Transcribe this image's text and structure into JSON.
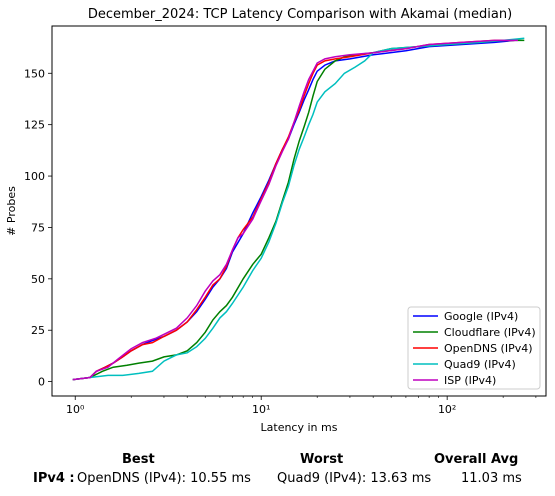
{
  "chart_data": {
    "type": "line",
    "title": "December_2024: TCP Latency Comparison with Akamai (median)",
    "xlabel": "Latency in ms",
    "ylabel": "# Probes",
    "xscale": "log",
    "xlim": [
      0.75,
      340
    ],
    "ylim": [
      -7,
      173
    ],
    "x_ticks": [
      1,
      10,
      100
    ],
    "x_tick_labels": [
      "10⁰",
      "10¹",
      "10²"
    ],
    "y_ticks": [
      0,
      25,
      50,
      75,
      100,
      125,
      150
    ],
    "grid": false,
    "legend_position": "lower-right",
    "series": [
      {
        "name": "Google (IPv4)",
        "color": "#0000ff",
        "x": [
          0.97,
          1.2,
          1.3,
          1.45,
          1.6,
          1.8,
          2.0,
          2.3,
          2.6,
          3.0,
          3.5,
          4.0,
          4.5,
          5.0,
          5.5,
          6.0,
          6.5,
          7.0,
          8.0,
          9.0,
          10.0,
          11.0,
          12.0,
          13.0,
          14.0,
          15.0,
          16.0,
          17.0,
          18.0,
          19.0,
          20.0,
          22.0,
          25.0,
          30.0,
          40.0,
          60.0,
          80.0,
          120.0,
          180.0,
          230.0
        ],
        "y": [
          1,
          2,
          5,
          7,
          9,
          12,
          15,
          18,
          20,
          22,
          25,
          29,
          34,
          40,
          46,
          50,
          55,
          63,
          72,
          82,
          90,
          98,
          106,
          113,
          118,
          125,
          131,
          137,
          142,
          147,
          151,
          154,
          156,
          157,
          159,
          161,
          163,
          164,
          165,
          166
        ]
      },
      {
        "name": "Cloudflare (IPv4)",
        "color": "#008000",
        "x": [
          0.97,
          1.2,
          1.4,
          1.6,
          1.9,
          2.2,
          2.6,
          3.0,
          3.5,
          4.0,
          4.5,
          5.0,
          5.5,
          6.0,
          6.5,
          7.0,
          8.0,
          9.0,
          10.0,
          11.0,
          12.0,
          13.0,
          14.0,
          15.0,
          16.0,
          17.0,
          18.0,
          19.0,
          20.0,
          22.0,
          25.0,
          28.0,
          32.0,
          40.0,
          50.0,
          70.0,
          100.0,
          150.0,
          200.0,
          260.0
        ],
        "y": [
          1,
          2,
          5,
          7,
          8,
          9,
          10,
          12,
          13,
          15,
          19,
          24,
          30,
          34,
          37,
          41,
          50,
          57,
          62,
          70,
          78,
          88,
          97,
          108,
          117,
          124,
          131,
          139,
          146,
          152,
          156,
          158,
          159,
          160,
          162,
          163,
          164,
          165,
          166,
          166
        ]
      },
      {
        "name": "OpenDNS (IPv4)",
        "color": "#ff0000",
        "x": [
          0.97,
          1.2,
          1.3,
          1.45,
          1.6,
          1.8,
          2.0,
          2.3,
          2.6,
          3.0,
          3.5,
          4.0,
          4.5,
          5.0,
          5.5,
          6.0,
          6.5,
          7.0,
          7.5,
          8.0,
          9.0,
          10.0,
          11.0,
          12.0,
          13.0,
          14.0,
          15.0,
          16.0,
          17.0,
          18.0,
          19.0,
          20.0,
          22.0,
          25.0,
          30.0,
          40.0,
          60.0,
          80.0,
          120.0,
          180.0,
          230.0
        ],
        "y": [
          1,
          2,
          5,
          7,
          9,
          12,
          15,
          18,
          19,
          22,
          25,
          29,
          35,
          41,
          47,
          50,
          56,
          64,
          70,
          74,
          80,
          89,
          97,
          106,
          113,
          119,
          126,
          132,
          139,
          145,
          150,
          154,
          156,
          157,
          158,
          160,
          162,
          164,
          165,
          166,
          166
        ]
      },
      {
        "name": "Quad9 (IPv4)",
        "color": "#00bfbf",
        "x": [
          0.97,
          1.2,
          1.5,
          1.8,
          2.2,
          2.6,
          3.0,
          3.5,
          4.0,
          4.5,
          5.0,
          5.5,
          6.0,
          6.5,
          7.0,
          8.0,
          9.0,
          10.0,
          11.0,
          12.0,
          13.0,
          14.0,
          15.0,
          16.0,
          17.0,
          18.0,
          19.0,
          20.0,
          22.0,
          25.0,
          28.0,
          32.0,
          36.0,
          40.0,
          50.0,
          70.0,
          100.0,
          150.0,
          200.0,
          260.0
        ],
        "y": [
          1,
          2,
          3,
          3,
          4,
          5,
          10,
          13,
          14,
          17,
          21,
          26,
          31,
          34,
          38,
          46,
          54,
          60,
          68,
          77,
          87,
          95,
          105,
          113,
          119,
          125,
          130,
          136,
          141,
          145,
          150,
          153,
          156,
          160,
          162,
          163,
          164,
          165,
          166,
          167
        ]
      },
      {
        "name": "ISP (IPv4)",
        "color": "#bf00bf",
        "x": [
          0.97,
          1.2,
          1.3,
          1.5,
          1.7,
          2.0,
          2.3,
          2.7,
          3.0,
          3.5,
          4.0,
          4.5,
          5.0,
          5.5,
          6.0,
          6.5,
          7.0,
          7.5,
          8.0,
          9.0,
          10.0,
          11.0,
          12.0,
          13.0,
          14.0,
          15.0,
          16.0,
          17.0,
          18.0,
          19.0,
          20.0,
          22.0,
          25.0,
          30.0,
          40.0,
          60.0,
          80.0,
          120.0,
          180.0,
          240.0
        ],
        "y": [
          1,
          2,
          5,
          7,
          11,
          16,
          19,
          21,
          23,
          26,
          31,
          37,
          44,
          49,
          52,
          57,
          64,
          70,
          72,
          79,
          88,
          96,
          105,
          112,
          118,
          126,
          134,
          141,
          147,
          151,
          155,
          157,
          158,
          159,
          160,
          162,
          164,
          165,
          166,
          166
        ]
      }
    ]
  },
  "summary": {
    "best_label": "Best",
    "worst_label": "Worst",
    "avg_label": "Overall Avg",
    "row_label": "IPv4 :",
    "best_value": "OpenDNS (IPv4): 10.55 ms",
    "worst_value": "Quad9 (IPv4): 13.63 ms",
    "avg_value": "11.03 ms"
  }
}
